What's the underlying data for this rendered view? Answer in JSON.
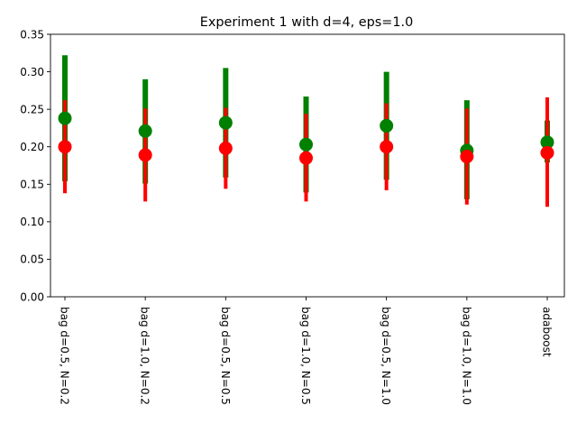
{
  "chart_data": {
    "type": "scatter",
    "title": "Experiment 1 with d=4, eps=1.0",
    "xlabel": "",
    "ylabel": "",
    "categories": [
      "bag d=0.5, N=0.2",
      "bag d=1.0, N=0.2",
      "bag d=0.5, N=0.5",
      "bag d=1.0, N=0.5",
      "bag d=0.5, N=1.0",
      "bag d=1.0, N=1.0",
      "adaboost"
    ],
    "ylim": [
      0,
      0.35
    ],
    "yticks": [
      "0.00",
      "0.05",
      "0.10",
      "0.15",
      "0.20",
      "0.25",
      "0.30",
      "0.35"
    ],
    "grid": false,
    "series": [
      {
        "color": "#008000",
        "values": [
          0.238,
          0.221,
          0.232,
          0.203,
          0.228,
          0.195,
          0.206
        ],
        "err_low": [
          0.154,
          0.151,
          0.159,
          0.139,
          0.156,
          0.13,
          0.179
        ],
        "err_high": [
          0.322,
          0.29,
          0.305,
          0.267,
          0.3,
          0.262,
          0.235
        ]
      },
      {
        "color": "#ff0000",
        "values": [
          0.2,
          0.189,
          0.198,
          0.185,
          0.2,
          0.187,
          0.192
        ],
        "err_low": [
          0.138,
          0.127,
          0.144,
          0.127,
          0.142,
          0.123,
          0.12
        ],
        "err_high": [
          0.262,
          0.251,
          0.252,
          0.244,
          0.258,
          0.251,
          0.266
        ]
      }
    ]
  }
}
